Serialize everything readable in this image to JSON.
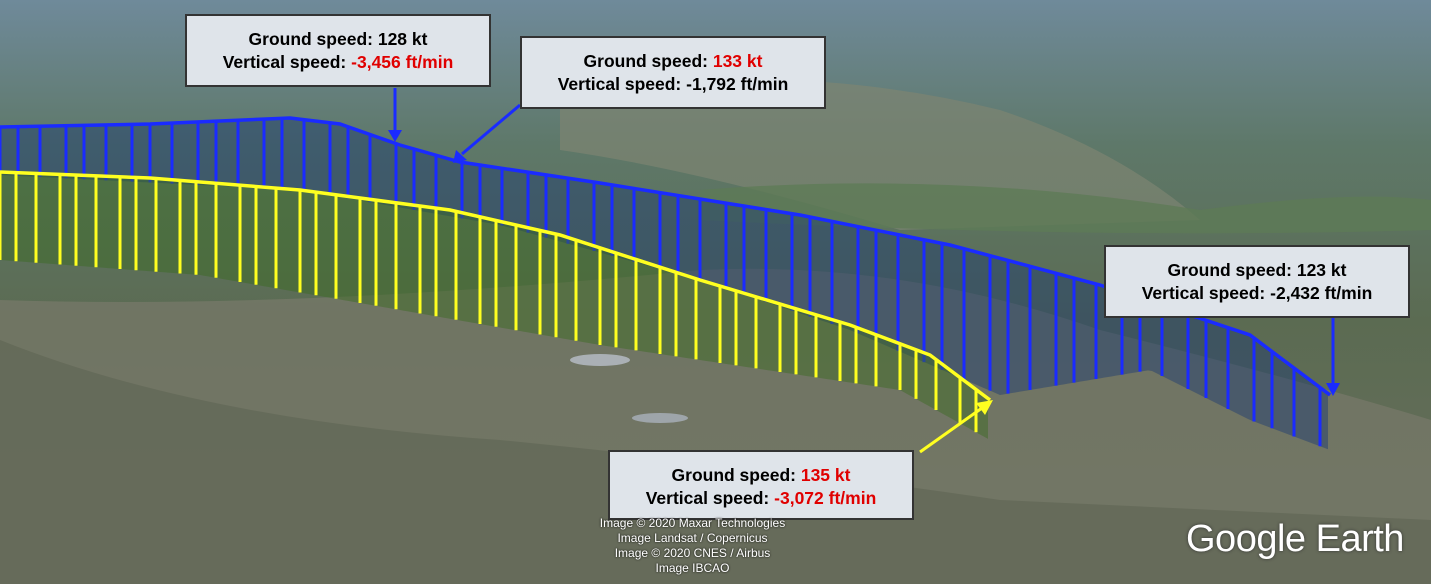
{
  "callouts": [
    {
      "ground_speed_label": "Ground speed:",
      "ground_speed": "128 kt",
      "vertical_speed_label": "Vertical speed:",
      "vertical_speed": "-3,456 ft/min",
      "highlight": [
        "vertical_speed"
      ]
    },
    {
      "ground_speed_label": "Ground speed:",
      "ground_speed": "133 kt",
      "vertical_speed_label": "Vertical speed:",
      "vertical_speed": "-1,792 ft/min",
      "highlight": [
        "ground_speed"
      ]
    },
    {
      "ground_speed_label": "Ground speed:",
      "ground_speed": "123 kt",
      "vertical_speed_label": "Vertical speed:",
      "vertical_speed": "-2,432 ft/min",
      "highlight": []
    },
    {
      "ground_speed_label": "Ground speed:",
      "ground_speed": "135 kt",
      "vertical_speed_label": "Vertical speed:",
      "vertical_speed": "-3,072 ft/min",
      "highlight": [
        "ground_speed",
        "vertical_speed"
      ]
    }
  ],
  "credits": [
    "Image © 2020 Maxar Technologies",
    "Image Landsat / Copernicus",
    "Image © 2020 CNES / Airbus",
    "Image IBCAO"
  ],
  "logo": "Google Earth"
}
